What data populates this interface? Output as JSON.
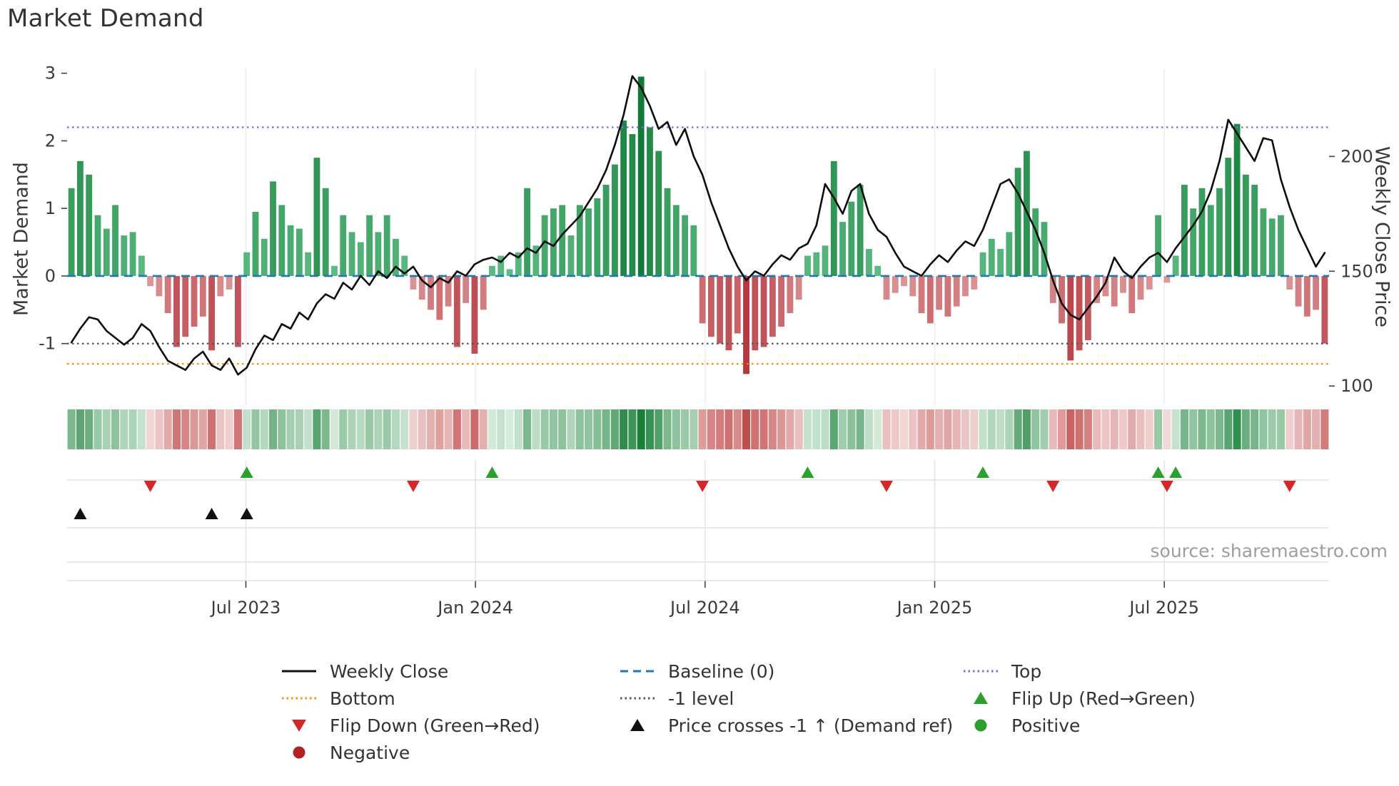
{
  "title": "Market Demand",
  "source": "source: sharemaestro.com",
  "axes": {
    "left_label": "Market Demand",
    "right_label": "Weekly Close Price",
    "left_ticks": [
      3,
      2,
      1,
      0,
      -1
    ],
    "right_ticks": [
      200,
      150,
      100
    ],
    "x_ticks": [
      "Jul 2023",
      "Jan 2024",
      "Jul 2024",
      "Jan 2025",
      "Jul 2025"
    ]
  },
  "legend": {
    "position": "below-chart",
    "items": [
      {
        "label": "Weekly Close",
        "swatch": "line",
        "color": "#111111"
      },
      {
        "label": "Baseline (0)",
        "swatch": "dashed-line",
        "color": "#1f77b4"
      },
      {
        "label": "Top",
        "swatch": "dotted-line",
        "color": "#7b68ee"
      },
      {
        "label": "Bottom",
        "swatch": "dotted-line",
        "color": "#ff8c00"
      },
      {
        "label": "-1 level",
        "swatch": "dotted-line",
        "color": "#595959"
      },
      {
        "label": "Flip Up (Red→Green)",
        "swatch": "triangle-up",
        "color": "#2ca02c"
      },
      {
        "label": "Flip Down (Green→Red)",
        "swatch": "triangle-down",
        "color": "#d62728"
      },
      {
        "label": "Price crosses -1 ↑ (Demand ref)",
        "swatch": "triangle-up",
        "color": "#111111"
      },
      {
        "label": "Positive",
        "swatch": "circle",
        "color": "#2ca02c"
      },
      {
        "label": "Negative",
        "swatch": "circle",
        "color": "#b22222"
      }
    ]
  },
  "chart_data": {
    "type": "bar+line combo with heatmap strip and event markers",
    "title": "Market Demand",
    "frequency": "weekly",
    "n_points": 144,
    "x_axis": {
      "tick_labels": [
        "Jul 2023",
        "Jan 2024",
        "Jul 2024",
        "Jan 2025",
        "Jul 2025"
      ],
      "tick_positions_week_index": [
        19.9,
        46.1,
        72.3,
        98.5,
        124.7
      ]
    },
    "left_axis": {
      "label": "Market Demand",
      "ticks": [
        3,
        2,
        1,
        0,
        -1
      ],
      "range": [
        -1.9,
        3.06
      ]
    },
    "right_axis": {
      "label": "Weekly Close Price",
      "ticks": [
        200,
        150,
        100
      ],
      "range": [
        92,
        238
      ]
    },
    "series": [
      {
        "name": "Market Demand",
        "type": "bar",
        "axis": "left",
        "values": [
          1.3,
          1.7,
          1.5,
          0.9,
          0.7,
          1.05,
          0.6,
          0.65,
          0.3,
          -0.15,
          -0.3,
          -0.55,
          -1.05,
          -0.9,
          -0.75,
          -0.6,
          -1.1,
          -0.3,
          -0.2,
          -1.05,
          0.35,
          0.95,
          0.55,
          1.4,
          1.05,
          0.75,
          0.7,
          0.35,
          1.75,
          1.3,
          0.15,
          0.9,
          0.65,
          0.5,
          0.9,
          0.65,
          0.9,
          0.55,
          0.3,
          -0.2,
          -0.35,
          -0.5,
          -0.65,
          -0.45,
          -1.05,
          -0.4,
          -1.15,
          -0.5,
          0.15,
          0.3,
          0.1,
          0.35,
          1.3,
          0.45,
          0.9,
          1.0,
          1.05,
          0.6,
          1.05,
          1.0,
          1.15,
          1.35,
          1.65,
          2.3,
          2.1,
          2.95,
          2.2,
          1.85,
          1.3,
          1.05,
          0.9,
          0.75,
          -0.7,
          -0.9,
          -1.0,
          -1.1,
          -0.85,
          -1.45,
          -1.1,
          -1.05,
          -0.9,
          -0.75,
          -0.55,
          -0.35,
          0.3,
          0.35,
          0.45,
          1.7,
          0.8,
          1.1,
          1.35,
          0.4,
          0.15,
          -0.35,
          -0.25,
          -0.15,
          -0.3,
          -0.55,
          -0.7,
          -0.5,
          -0.6,
          -0.45,
          -0.3,
          -0.2,
          0.35,
          0.55,
          0.4,
          0.65,
          1.6,
          1.85,
          1.0,
          0.8,
          -0.4,
          -0.7,
          -1.25,
          -1.1,
          -0.95,
          -0.4,
          -0.3,
          -0.45,
          -0.25,
          -0.55,
          -0.35,
          -0.2,
          0.9,
          -0.1,
          0.3,
          1.35,
          1.0,
          1.3,
          1.05,
          1.3,
          1.75,
          2.25,
          1.5,
          1.35,
          1.0,
          0.85,
          0.9,
          -0.2,
          -0.45,
          -0.6,
          -0.5,
          -1.0
        ]
      },
      {
        "name": "Weekly Close",
        "type": "line",
        "axis": "right",
        "values": [
          119,
          125,
          130,
          129,
          124,
          121,
          118,
          121,
          127,
          124,
          117,
          111,
          109,
          107,
          112,
          115,
          109,
          107,
          112,
          105,
          108,
          116,
          122,
          120,
          127,
          125,
          132,
          129,
          136,
          140,
          138,
          145,
          142,
          148,
          144,
          150,
          147,
          152,
          149,
          152,
          146,
          143,
          147,
          145,
          150,
          148,
          153,
          155,
          156,
          154,
          158,
          156,
          160,
          158,
          163,
          161,
          166,
          170,
          174,
          180,
          186,
          194,
          205,
          218,
          235,
          230,
          222,
          212,
          215,
          205,
          212,
          200,
          192,
          180,
          170,
          160,
          152,
          146,
          150,
          148,
          153,
          157,
          155,
          160,
          162,
          170,
          188,
          182,
          175,
          185,
          188,
          175,
          168,
          165,
          158,
          152,
          150,
          148,
          153,
          157,
          154,
          159,
          163,
          161,
          168,
          178,
          188,
          190,
          184,
          176,
          168,
          158,
          146,
          136,
          131,
          129,
          134,
          139,
          145,
          156,
          150,
          147,
          152,
          156,
          158,
          154,
          160,
          165,
          170,
          176,
          185,
          198,
          216,
          210,
          204,
          198,
          208,
          207,
          190,
          178,
          168,
          160,
          152,
          158
        ]
      }
    ],
    "ref_lines": [
      {
        "key": "baseline",
        "name": "Baseline (0)",
        "value": 0,
        "color": "#1f77b4",
        "style": "dashed"
      },
      {
        "key": "top",
        "name": "Top",
        "value": 2.2,
        "color": "#7b68ee",
        "style": "dotted"
      },
      {
        "key": "bottom",
        "name": "Bottom",
        "value": -1.3,
        "color": "#ff8c00",
        "style": "dotted"
      },
      {
        "key": "minus1",
        "name": "-1 level",
        "value": -1,
        "color": "#555555",
        "style": "dotted"
      }
    ],
    "markers": {
      "flip_up_week_index": [
        20,
        48,
        84,
        104,
        124,
        126
      ],
      "flip_down_week_index": [
        9,
        39,
        72,
        93,
        112,
        125,
        139
      ],
      "price_cross_up_week_index": [
        1,
        16,
        20
      ]
    },
    "heatmap": "strip below chart mirrors weekly Market Demand values as red-green intensity",
    "colors": {
      "positive_scale": [
        "#60be86",
        "#117a36"
      ],
      "negative_scale": [
        "#e1a0a0",
        "#b2343c"
      ],
      "heat_positive_scale": [
        "#ddefe2",
        "#188038"
      ],
      "heat_negative_scale": [
        "#f6e3e3",
        "#c04848"
      ],
      "line": "#0d0d0d",
      "flip_up": "#2ca02c",
      "flip_down": "#d62728",
      "price_cross": "#111111"
    },
    "grid": "light vertical gridlines at x ticks; horizontal lane separators under heatmap",
    "legend_position": "bottom"
  }
}
